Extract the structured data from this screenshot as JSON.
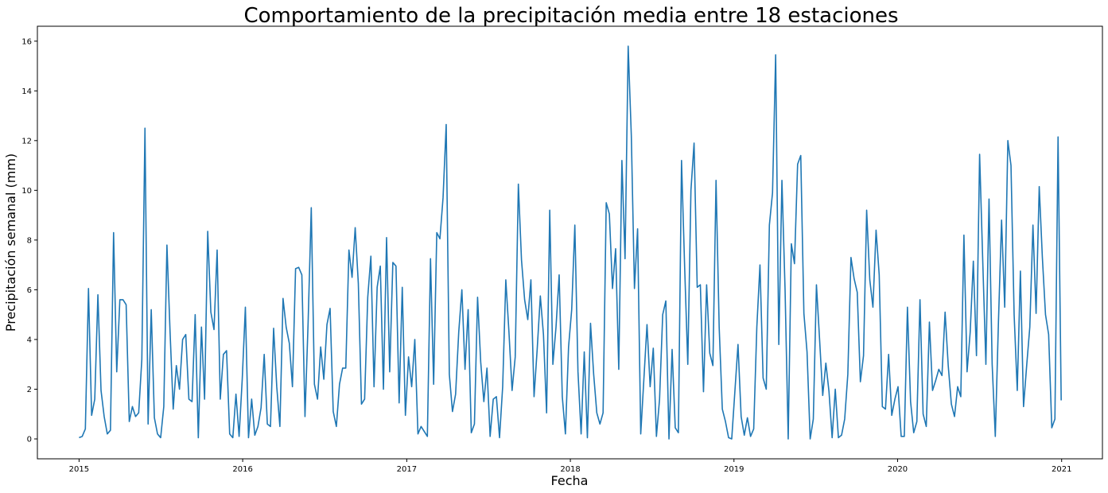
{
  "chart_data": {
    "type": "line",
    "title": "Comportamiento de la precipitación media entre 18 estaciones",
    "xlabel": "Fecha",
    "ylabel": "Precipitación semanal (mm)",
    "xlim": [
      "2014-09-30",
      "2021-04-02"
    ],
    "ylim": [
      -0.8,
      16.6
    ],
    "x_ticks": [
      "2015-01-01",
      "2016-01-01",
      "2017-01-01",
      "2018-01-01",
      "2019-01-01",
      "2020-01-01",
      "2021-01-01"
    ],
    "x_tick_labels": [
      "2015",
      "2016",
      "2017",
      "2018",
      "2019",
      "2020",
      "2021"
    ],
    "y_ticks": [
      0,
      2,
      4,
      6,
      8,
      10,
      12,
      14,
      16
    ],
    "grid": false,
    "line_color": "#1f77b4",
    "series": [
      {
        "start_date": "2015-01-01",
        "step_days": 7,
        "values": [
          0.05,
          0.1,
          0.4,
          6.05,
          0.95,
          1.6,
          5.8,
          1.95,
          0.9,
          0.2,
          0.35,
          8.3,
          2.7,
          5.6,
          5.6,
          5.4,
          0.7,
          1.3,
          0.9,
          1.05,
          3.2,
          12.5,
          0.6,
          5.2,
          0.85,
          0.2,
          0.05,
          1.3,
          7.8,
          4.3,
          1.2,
          2.95,
          2.0,
          4.0,
          4.2,
          1.6,
          1.5,
          5.0,
          0.05,
          4.5,
          1.6,
          8.35,
          5.1,
          4.4,
          7.6,
          1.6,
          3.4,
          3.55,
          0.2,
          0.05,
          1.8,
          0.1,
          2.4,
          5.3,
          0.05,
          1.6,
          0.15,
          0.5,
          1.25,
          3.4,
          0.6,
          0.5,
          4.45,
          2.1,
          0.5,
          5.65,
          4.5,
          3.85,
          2.1,
          6.85,
          6.9,
          6.6,
          0.9,
          4.7,
          9.3,
          2.2,
          1.6,
          3.7,
          2.4,
          4.6,
          5.25,
          1.1,
          0.5,
          2.2,
          2.85,
          2.85,
          7.6,
          6.5,
          8.5,
          6.25,
          1.4,
          1.6,
          5.7,
          7.35,
          2.1,
          6.1,
          6.95,
          2.0,
          8.1,
          2.7,
          7.1,
          6.95,
          1.45,
          6.1,
          0.95,
          3.3,
          2.1,
          4.0,
          0.2,
          0.5,
          0.3,
          0.1,
          7.25,
          2.2,
          8.3,
          8.05,
          9.7,
          12.65,
          2.6,
          1.1,
          1.8,
          4.3,
          6.0,
          2.8,
          5.2,
          0.25,
          0.6,
          5.7,
          3.1,
          1.5,
          2.85,
          0.1,
          1.6,
          1.7,
          0.05,
          2.1,
          6.4,
          4.3,
          1.95,
          3.3,
          10.25,
          7.2,
          5.6,
          4.8,
          6.4,
          1.7,
          3.6,
          5.75,
          4.2,
          1.05,
          9.2,
          3.0,
          4.5,
          6.6,
          1.7,
          0.2,
          3.7,
          5.2,
          8.6,
          2.7,
          0.2,
          3.5,
          0.05,
          4.65,
          2.6,
          1.05,
          0.6,
          1.05,
          9.5,
          9.05,
          6.05,
          7.65,
          2.8,
          11.2,
          7.25,
          15.8,
          12.2,
          6.05,
          8.45,
          0.2,
          2.4,
          4.6,
          2.1,
          3.65,
          0.1,
          1.6,
          5.0,
          5.55,
          0.0,
          3.6,
          0.45,
          0.25,
          11.2,
          6.9,
          3.0,
          10.0,
          11.9,
          6.1,
          6.2,
          1.9,
          6.2,
          3.45,
          2.95,
          10.4,
          4.5,
          1.2,
          0.7,
          0.05,
          0.0,
          1.9,
          3.8,
          0.9,
          0.15,
          0.85,
          0.1,
          0.4,
          4.5,
          7.0,
          2.45,
          2.0,
          8.6,
          9.9,
          15.45,
          3.8,
          10.4,
          6.0,
          0.0,
          7.85,
          7.05,
          11.05,
          11.4,
          5.05,
          3.5,
          0.0,
          0.8,
          6.2,
          4.0,
          1.75,
          3.05,
          1.9,
          0.05,
          2.0,
          0.05,
          0.15,
          0.8,
          2.6,
          7.3,
          6.45,
          5.9,
          2.3,
          3.35,
          9.2,
          6.4,
          5.3,
          8.4,
          6.6,
          1.3,
          1.2,
          3.4,
          0.95,
          1.6,
          2.1,
          0.1,
          0.1,
          5.3,
          1.5,
          0.25,
          0.7,
          5.6,
          1.0,
          0.5,
          4.7,
          1.95,
          2.35,
          2.8,
          2.55,
          5.1,
          2.95,
          1.4,
          0.9,
          2.1,
          1.7,
          8.2,
          2.7,
          4.3,
          7.15,
          3.35,
          11.45,
          7.15,
          3.0,
          9.65,
          3.0,
          0.1,
          4.7,
          8.8,
          5.3,
          12.0,
          11.0,
          5.0,
          1.95,
          6.75,
          1.3,
          2.95,
          4.5,
          8.6,
          5.05,
          10.15,
          7.3,
          5.0,
          4.2,
          0.45,
          0.8,
          12.15,
          1.55
        ]
      }
    ]
  }
}
